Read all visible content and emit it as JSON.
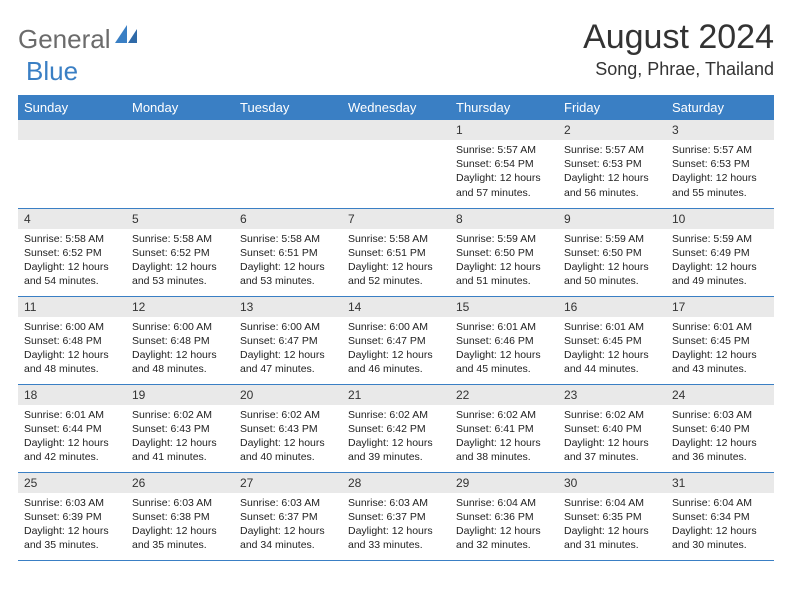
{
  "brand": {
    "name_part1": "General",
    "name_part2": "Blue"
  },
  "title": "August 2024",
  "location": "Song, Phrae, Thailand",
  "colors": {
    "header_bg": "#3a7fc4",
    "band_bg": "#e9e9e9",
    "text": "#333333",
    "logo_gray": "#6b6b6b",
    "logo_blue": "#3a7fc4"
  },
  "day_labels": [
    "Sunday",
    "Monday",
    "Tuesday",
    "Wednesday",
    "Thursday",
    "Friday",
    "Saturday"
  ],
  "weeks": [
    [
      null,
      null,
      null,
      null,
      {
        "n": "1",
        "sr": "Sunrise: 5:57 AM",
        "ss": "Sunset: 6:54 PM",
        "d1": "Daylight: 12 hours",
        "d2": "and 57 minutes."
      },
      {
        "n": "2",
        "sr": "Sunrise: 5:57 AM",
        "ss": "Sunset: 6:53 PM",
        "d1": "Daylight: 12 hours",
        "d2": "and 56 minutes."
      },
      {
        "n": "3",
        "sr": "Sunrise: 5:57 AM",
        "ss": "Sunset: 6:53 PM",
        "d1": "Daylight: 12 hours",
        "d2": "and 55 minutes."
      }
    ],
    [
      {
        "n": "4",
        "sr": "Sunrise: 5:58 AM",
        "ss": "Sunset: 6:52 PM",
        "d1": "Daylight: 12 hours",
        "d2": "and 54 minutes."
      },
      {
        "n": "5",
        "sr": "Sunrise: 5:58 AM",
        "ss": "Sunset: 6:52 PM",
        "d1": "Daylight: 12 hours",
        "d2": "and 53 minutes."
      },
      {
        "n": "6",
        "sr": "Sunrise: 5:58 AM",
        "ss": "Sunset: 6:51 PM",
        "d1": "Daylight: 12 hours",
        "d2": "and 53 minutes."
      },
      {
        "n": "7",
        "sr": "Sunrise: 5:58 AM",
        "ss": "Sunset: 6:51 PM",
        "d1": "Daylight: 12 hours",
        "d2": "and 52 minutes."
      },
      {
        "n": "8",
        "sr": "Sunrise: 5:59 AM",
        "ss": "Sunset: 6:50 PM",
        "d1": "Daylight: 12 hours",
        "d2": "and 51 minutes."
      },
      {
        "n": "9",
        "sr": "Sunrise: 5:59 AM",
        "ss": "Sunset: 6:50 PM",
        "d1": "Daylight: 12 hours",
        "d2": "and 50 minutes."
      },
      {
        "n": "10",
        "sr": "Sunrise: 5:59 AM",
        "ss": "Sunset: 6:49 PM",
        "d1": "Daylight: 12 hours",
        "d2": "and 49 minutes."
      }
    ],
    [
      {
        "n": "11",
        "sr": "Sunrise: 6:00 AM",
        "ss": "Sunset: 6:48 PM",
        "d1": "Daylight: 12 hours",
        "d2": "and 48 minutes."
      },
      {
        "n": "12",
        "sr": "Sunrise: 6:00 AM",
        "ss": "Sunset: 6:48 PM",
        "d1": "Daylight: 12 hours",
        "d2": "and 48 minutes."
      },
      {
        "n": "13",
        "sr": "Sunrise: 6:00 AM",
        "ss": "Sunset: 6:47 PM",
        "d1": "Daylight: 12 hours",
        "d2": "and 47 minutes."
      },
      {
        "n": "14",
        "sr": "Sunrise: 6:00 AM",
        "ss": "Sunset: 6:47 PM",
        "d1": "Daylight: 12 hours",
        "d2": "and 46 minutes."
      },
      {
        "n": "15",
        "sr": "Sunrise: 6:01 AM",
        "ss": "Sunset: 6:46 PM",
        "d1": "Daylight: 12 hours",
        "d2": "and 45 minutes."
      },
      {
        "n": "16",
        "sr": "Sunrise: 6:01 AM",
        "ss": "Sunset: 6:45 PM",
        "d1": "Daylight: 12 hours",
        "d2": "and 44 minutes."
      },
      {
        "n": "17",
        "sr": "Sunrise: 6:01 AM",
        "ss": "Sunset: 6:45 PM",
        "d1": "Daylight: 12 hours",
        "d2": "and 43 minutes."
      }
    ],
    [
      {
        "n": "18",
        "sr": "Sunrise: 6:01 AM",
        "ss": "Sunset: 6:44 PM",
        "d1": "Daylight: 12 hours",
        "d2": "and 42 minutes."
      },
      {
        "n": "19",
        "sr": "Sunrise: 6:02 AM",
        "ss": "Sunset: 6:43 PM",
        "d1": "Daylight: 12 hours",
        "d2": "and 41 minutes."
      },
      {
        "n": "20",
        "sr": "Sunrise: 6:02 AM",
        "ss": "Sunset: 6:43 PM",
        "d1": "Daylight: 12 hours",
        "d2": "and 40 minutes."
      },
      {
        "n": "21",
        "sr": "Sunrise: 6:02 AM",
        "ss": "Sunset: 6:42 PM",
        "d1": "Daylight: 12 hours",
        "d2": "and 39 minutes."
      },
      {
        "n": "22",
        "sr": "Sunrise: 6:02 AM",
        "ss": "Sunset: 6:41 PM",
        "d1": "Daylight: 12 hours",
        "d2": "and 38 minutes."
      },
      {
        "n": "23",
        "sr": "Sunrise: 6:02 AM",
        "ss": "Sunset: 6:40 PM",
        "d1": "Daylight: 12 hours",
        "d2": "and 37 minutes."
      },
      {
        "n": "24",
        "sr": "Sunrise: 6:03 AM",
        "ss": "Sunset: 6:40 PM",
        "d1": "Daylight: 12 hours",
        "d2": "and 36 minutes."
      }
    ],
    [
      {
        "n": "25",
        "sr": "Sunrise: 6:03 AM",
        "ss": "Sunset: 6:39 PM",
        "d1": "Daylight: 12 hours",
        "d2": "and 35 minutes."
      },
      {
        "n": "26",
        "sr": "Sunrise: 6:03 AM",
        "ss": "Sunset: 6:38 PM",
        "d1": "Daylight: 12 hours",
        "d2": "and 35 minutes."
      },
      {
        "n": "27",
        "sr": "Sunrise: 6:03 AM",
        "ss": "Sunset: 6:37 PM",
        "d1": "Daylight: 12 hours",
        "d2": "and 34 minutes."
      },
      {
        "n": "28",
        "sr": "Sunrise: 6:03 AM",
        "ss": "Sunset: 6:37 PM",
        "d1": "Daylight: 12 hours",
        "d2": "and 33 minutes."
      },
      {
        "n": "29",
        "sr": "Sunrise: 6:04 AM",
        "ss": "Sunset: 6:36 PM",
        "d1": "Daylight: 12 hours",
        "d2": "and 32 minutes."
      },
      {
        "n": "30",
        "sr": "Sunrise: 6:04 AM",
        "ss": "Sunset: 6:35 PM",
        "d1": "Daylight: 12 hours",
        "d2": "and 31 minutes."
      },
      {
        "n": "31",
        "sr": "Sunrise: 6:04 AM",
        "ss": "Sunset: 6:34 PM",
        "d1": "Daylight: 12 hours",
        "d2": "and 30 minutes."
      }
    ]
  ]
}
